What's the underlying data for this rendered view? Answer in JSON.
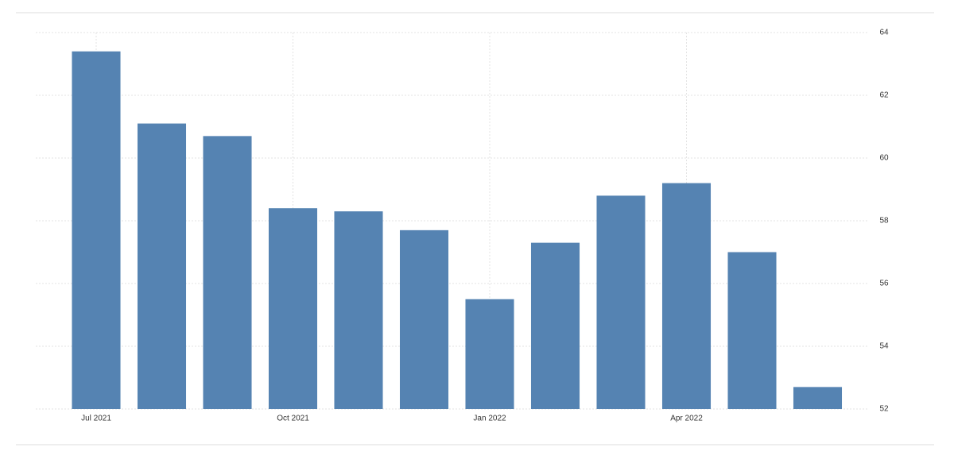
{
  "chart_data": {
    "type": "bar",
    "categories": [
      "Jul 2021",
      null,
      null,
      "Oct 2021",
      null,
      null,
      "Jan 2022",
      null,
      null,
      "Apr 2022",
      null,
      null
    ],
    "values": [
      63.4,
      61.1,
      60.7,
      58.4,
      58.3,
      57.7,
      55.5,
      57.3,
      58.8,
      59.2,
      57.0,
      52.7
    ],
    "color": "#5583b2",
    "ylim": [
      52,
      64
    ],
    "yticks": [
      52,
      54,
      56,
      58,
      60,
      62,
      64
    ],
    "grid": true
  }
}
